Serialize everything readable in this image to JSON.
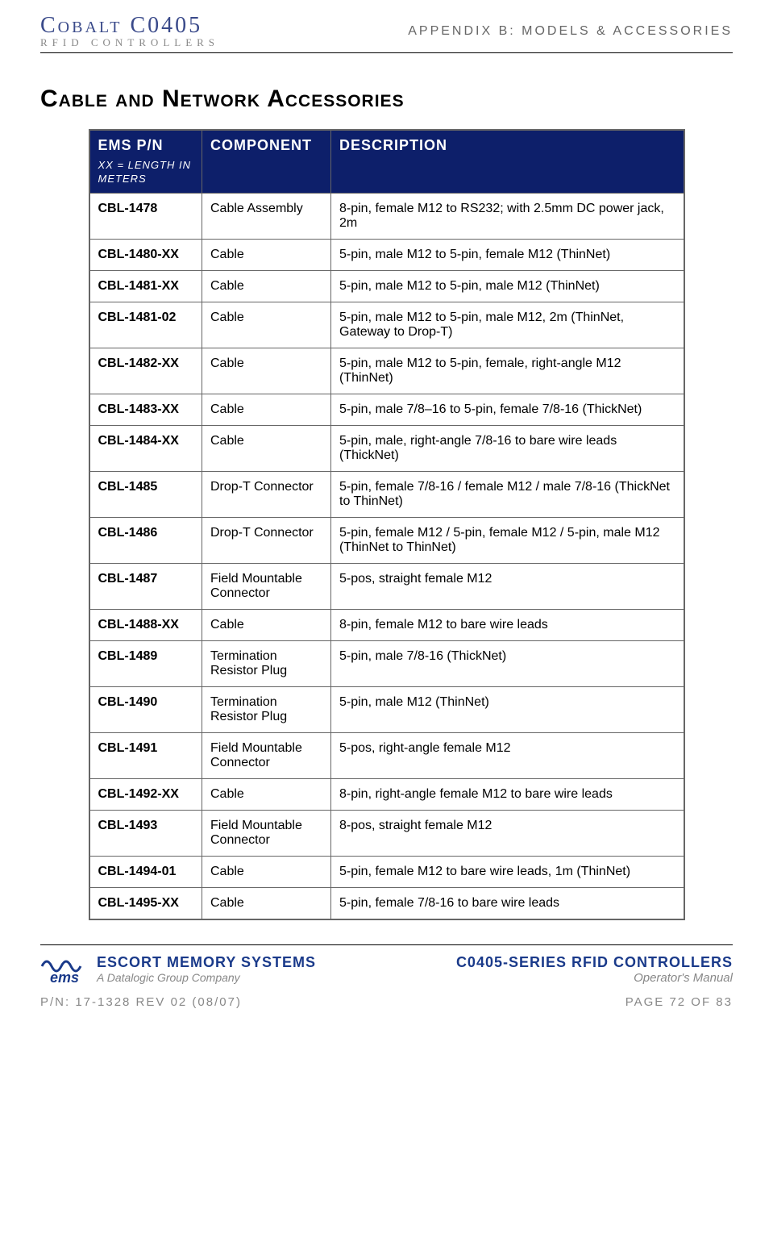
{
  "header": {
    "logo_top": "Cobalt  C0405",
    "logo_sub": "RFID CONTROLLERS",
    "appendix": "APPENDIX B: MODELS & ACCESSORIES"
  },
  "section_title": "Cable and Network Accessories",
  "table": {
    "header_bg": "#0d1f6a",
    "header_fg": "#ffffff",
    "border_color": "#666666",
    "columns": {
      "pn": "EMS P/N",
      "pn_sub": "XX = LENGTH IN METERS",
      "component": "COMPONENT",
      "description": "DESCRIPTION"
    },
    "rows": [
      {
        "pn": "CBL-1478",
        "component": "Cable Assembly",
        "description": "8-pin, female M12 to RS232; with 2.5mm DC power jack, 2m"
      },
      {
        "pn": "CBL-1480-XX",
        "component": "Cable",
        "description": "5-pin, male M12 to 5-pin, female M12 (ThinNet)"
      },
      {
        "pn": "CBL-1481-XX",
        "component": "Cable",
        "description": "5-pin, male M12 to 5-pin, male M12 (ThinNet)"
      },
      {
        "pn": "CBL-1481-02",
        "component": "Cable",
        "description": "5-pin, male M12 to 5-pin, male M12, 2m (ThinNet, Gateway to Drop-T)"
      },
      {
        "pn": "CBL-1482-XX",
        "component": "Cable",
        "description": "5-pin, male M12 to 5-pin, female, right-angle M12 (ThinNet)"
      },
      {
        "pn": "CBL-1483-XX",
        "component": "Cable",
        "description": "5-pin, male 7/8–16 to 5-pin, female 7/8-16 (ThickNet)"
      },
      {
        "pn": "CBL-1484-XX",
        "component": "Cable",
        "description": "5-pin, male, right-angle 7/8-16 to bare wire leads (ThickNet)"
      },
      {
        "pn": "CBL-1485",
        "component": "Drop-T Connector",
        "description": "5-pin, female 7/8-16 / female M12 / male 7/8-16 (ThickNet to ThinNet)"
      },
      {
        "pn": "CBL-1486",
        "component": "Drop-T Connector",
        "description": "5-pin, female M12 / 5-pin, female M12 / 5-pin, male M12 (ThinNet to ThinNet)"
      },
      {
        "pn": "CBL-1487",
        "component": "Field Mountable Connector",
        "description": "5-pos, straight female M12"
      },
      {
        "pn": "CBL-1488-XX",
        "component": "Cable",
        "description": "8-pin, female M12 to bare wire leads"
      },
      {
        "pn": "CBL-1489",
        "component": "Termination Resistor Plug",
        "description": "5-pin, male 7/8-16 (ThickNet)"
      },
      {
        "pn": "CBL-1490",
        "component": "Termination Resistor Plug",
        "description": "5-pin, male M12 (ThinNet)"
      },
      {
        "pn": "CBL-1491",
        "component": "Field Mountable Connector",
        "description": "5-pos, right-angle female M12"
      },
      {
        "pn": "CBL-1492-XX",
        "component": "Cable",
        "description": "8-pin, right-angle female M12 to bare wire leads"
      },
      {
        "pn": "CBL-1493",
        "component": "Field Mountable Connector",
        "description": "8-pos, straight female M12"
      },
      {
        "pn": "CBL-1494-01",
        "component": "Cable",
        "description": "5-pin, female M12 to bare wire leads, 1m (ThinNet)"
      },
      {
        "pn": "CBL-1495-XX",
        "component": "Cable",
        "description": "5-pin, female 7/8-16 to bare wire leads"
      }
    ]
  },
  "footer": {
    "company": "ESCORT MEMORY SYSTEMS",
    "company_sub": "A Datalogic Group Company",
    "product": "C0405-SERIES RFID CONTROLLERS",
    "product_sub": "Operator's Manual",
    "pn": "P/N: 17-1328 REV 02 (08/07)",
    "page": "PAGE 72 OF 83",
    "brand_color": "#1a3a8a",
    "muted_color": "#888888"
  }
}
